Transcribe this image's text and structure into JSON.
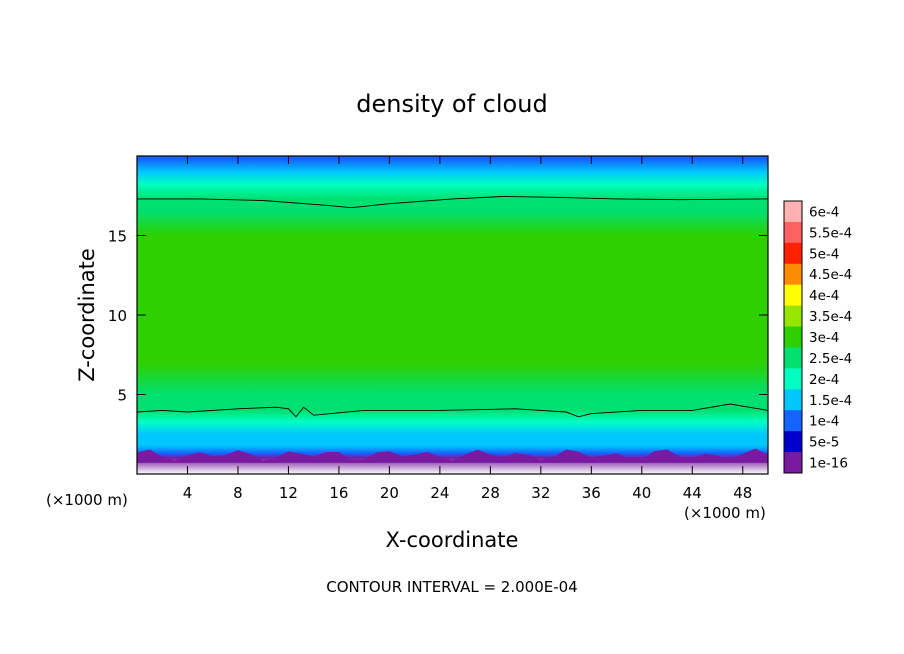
{
  "chart_data": {
    "type": "heatmap",
    "title": "density of cloud",
    "xlabel": "X-coordinate",
    "ylabel": "Z-coordinate",
    "x_unit_left": "(×1000 m)",
    "x_unit_right": "(×1000 m)",
    "xlim": [
      0,
      50
    ],
    "ylim": [
      0,
      20
    ],
    "x_ticks": [
      4,
      8,
      12,
      16,
      20,
      24,
      28,
      32,
      36,
      40,
      44,
      48
    ],
    "x_tick_labels": [
      "4",
      "8",
      "12",
      "16",
      "20",
      "24",
      "28",
      "32",
      "36",
      "40",
      "44",
      "48"
    ],
    "y_ticks": [
      5,
      10,
      15
    ],
    "y_tick_labels": [
      "5",
      "10",
      "15"
    ],
    "footer": "CONTOUR INTERVAL = 2.000E-04",
    "colorbar": {
      "labels": [
        "6e-4",
        "5.5e-4",
        "5e-4",
        "4.5e-4",
        "4e-4",
        "3.5e-4",
        "3e-4",
        "2.5e-4",
        "2e-4",
        "1.5e-4",
        "1e-4",
        "5e-5",
        "1e-16"
      ],
      "colors": [
        "#ffb0b0",
        "#ff6060",
        "#ff2000",
        "#ff8c00",
        "#ffff00",
        "#96e600",
        "#2ed000",
        "#00e070",
        "#00ffc0",
        "#00c8ff",
        "#1464ff",
        "#0000c8",
        "#7a1aa0"
      ]
    },
    "profile": {
      "z": [
        0,
        1.0,
        1.3,
        1.8,
        2.5,
        3.3,
        4.0,
        5.0,
        7.0,
        9.0,
        11.0,
        13.0,
        15.0,
        16.5,
        17.3,
        18.2,
        19.0,
        19.8
      ],
      "density": [
        -1,
        0,
        5e-05,
        0.0001,
        0.00014,
        0.00018,
        0.0002,
        0.00024,
        0.00027,
        0.00029,
        0.00029,
        0.00028,
        0.00026,
        0.00023,
        0.0002,
        0.00016,
        0.00011,
        6e-05
      ]
    },
    "contours": [
      {
        "level": 0.0002,
        "x": [
          0,
          5,
          10,
          15,
          17,
          20,
          25,
          29,
          33,
          38,
          43,
          50
        ],
        "z": [
          17.3,
          17.3,
          17.2,
          16.9,
          16.75,
          17.0,
          17.3,
          17.45,
          17.4,
          17.3,
          17.25,
          17.3
        ]
      },
      {
        "level": 0.0002,
        "x": [
          0,
          2,
          4,
          8,
          11,
          12,
          12.6,
          13.2,
          14,
          18,
          24,
          30,
          34,
          35,
          36,
          40,
          44,
          47,
          50
        ],
        "z": [
          3.9,
          4.0,
          3.9,
          4.1,
          4.2,
          4.1,
          3.6,
          4.2,
          3.7,
          4.0,
          4.0,
          4.1,
          3.9,
          3.6,
          3.8,
          4.0,
          4.0,
          4.4,
          4.0
        ]
      }
    ]
  }
}
